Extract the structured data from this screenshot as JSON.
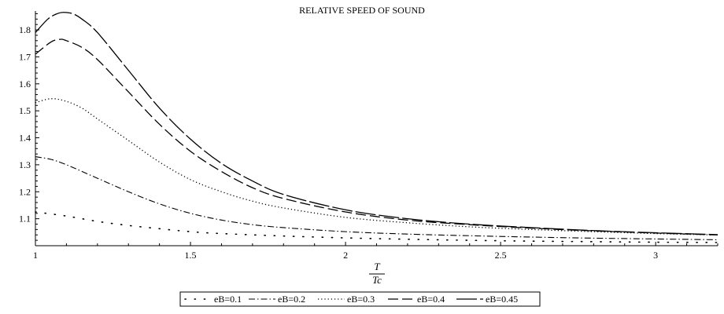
{
  "chart_data": {
    "type": "line",
    "title": "RELATIVE SPEED OF SOUND",
    "xlabel_num": "T",
    "xlabel_den": "Tc",
    "ylabel": "",
    "xlim": [
      1.0,
      3.2
    ],
    "ylim": [
      1.0,
      1.87
    ],
    "x_ticks": [
      1,
      1.5,
      2,
      2.5,
      3
    ],
    "x_tick_labels": [
      "1",
      "1.5",
      "2",
      "2.5",
      "3"
    ],
    "y_ticks": [
      1.1,
      1.2,
      1.3,
      1.4,
      1.5,
      1.6,
      1.7,
      1.8
    ],
    "y_tick_labels": [
      "1.1",
      "1.2",
      "1.3",
      "1.4",
      "1.5",
      "1.6",
      "1.7",
      "1.8"
    ],
    "grid": false,
    "legend_position": "bottom",
    "series": [
      {
        "name": "eB=0.1",
        "style": "dot-sparse",
        "x": [
          1.0,
          1.1,
          1.2,
          1.3,
          1.4,
          1.5,
          1.6,
          1.8,
          2.0,
          2.2,
          2.4,
          2.6,
          2.8,
          3.0,
          3.2
        ],
        "y": [
          1.125,
          1.11,
          1.09,
          1.075,
          1.063,
          1.052,
          1.045,
          1.036,
          1.029,
          1.024,
          1.02,
          1.017,
          1.015,
          1.013,
          1.012
        ]
      },
      {
        "name": "eB=0.2",
        "style": "dash-dot",
        "x": [
          1.0,
          1.05,
          1.1,
          1.2,
          1.3,
          1.4,
          1.5,
          1.6,
          1.7,
          1.8,
          2.0,
          2.2,
          2.4,
          2.6,
          2.8,
          3.0,
          3.2
        ],
        "y": [
          1.33,
          1.32,
          1.3,
          1.25,
          1.2,
          1.155,
          1.12,
          1.095,
          1.078,
          1.067,
          1.052,
          1.043,
          1.037,
          1.032,
          1.028,
          1.025,
          1.022
        ]
      },
      {
        "name": "eB=0.3",
        "style": "dotted",
        "x": [
          1.0,
          1.05,
          1.1,
          1.15,
          1.2,
          1.3,
          1.4,
          1.5,
          1.6,
          1.7,
          1.8,
          2.0,
          2.2,
          2.4,
          2.6,
          2.8,
          3.0,
          3.2
        ],
        "y": [
          1.53,
          1.545,
          1.535,
          1.51,
          1.47,
          1.39,
          1.31,
          1.245,
          1.2,
          1.165,
          1.14,
          1.105,
          1.085,
          1.07,
          1.06,
          1.052,
          1.045,
          1.04
        ]
      },
      {
        "name": "eB=0.4",
        "style": "dashed",
        "x": [
          1.0,
          1.05,
          1.08,
          1.1,
          1.15,
          1.2,
          1.3,
          1.4,
          1.5,
          1.6,
          1.7,
          1.8,
          2.0,
          2.2,
          2.4,
          2.6,
          2.8,
          3.0,
          3.2
        ],
        "y": [
          1.71,
          1.755,
          1.765,
          1.76,
          1.735,
          1.69,
          1.57,
          1.45,
          1.35,
          1.275,
          1.215,
          1.175,
          1.125,
          1.095,
          1.078,
          1.065,
          1.055,
          1.047,
          1.04
        ]
      },
      {
        "name": "eB=0.45",
        "style": "long-dash",
        "x": [
          1.0,
          1.04,
          1.07,
          1.09,
          1.12,
          1.15,
          1.2,
          1.3,
          1.4,
          1.5,
          1.6,
          1.7,
          1.8,
          2.0,
          2.2,
          2.4,
          2.6,
          2.8,
          3.0,
          3.2
        ],
        "y": [
          1.79,
          1.84,
          1.86,
          1.865,
          1.86,
          1.84,
          1.79,
          1.65,
          1.51,
          1.395,
          1.305,
          1.24,
          1.19,
          1.133,
          1.1,
          1.08,
          1.067,
          1.056,
          1.048,
          1.041
        ]
      }
    ]
  }
}
